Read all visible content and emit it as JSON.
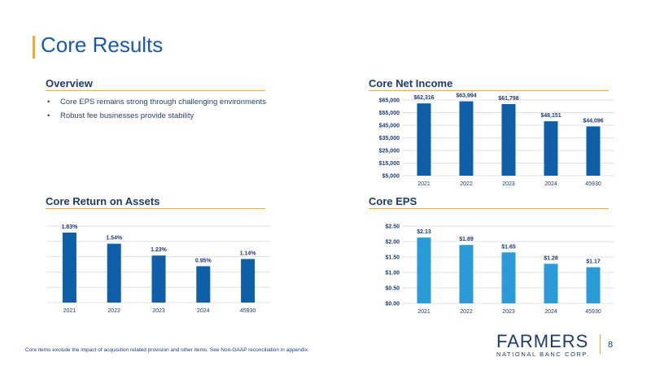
{
  "page": {
    "title": "Core Results",
    "footnote": "Core items exclude the impact of acquisition related provision and other items. See Non-GAAP reconciliation in appendix.",
    "page_number": "8"
  },
  "logo": {
    "main": "FARMERS",
    "sub": "NATIONAL BANC CORP."
  },
  "overview": {
    "heading": "Overview",
    "bullets": [
      "Core EPS remains strong through challenging environments",
      "Robust fee businesses provide stability"
    ]
  },
  "colors": {
    "accent": "#f0a830",
    "dark_blue": "#0e5ea8",
    "light_blue": "#2a9bd8",
    "title_blue": "#1b5aa6"
  },
  "chart_data": [
    {
      "type": "bar",
      "title": "Core Net Income",
      "categories": [
        "2021",
        "2022",
        "2023",
        "2024",
        "45930"
      ],
      "values": [
        62316,
        63994,
        61798,
        48151,
        44096
      ],
      "data_labels": [
        "$62,316",
        "$63,994",
        "$61,798",
        "$48,151",
        "$44,096"
      ],
      "ylim": [
        5000,
        65000
      ],
      "yticks": [
        5000,
        15000,
        25000,
        35000,
        45000,
        55000,
        65000
      ],
      "ytick_labels": [
        "$5,000",
        "$15,000",
        "$25,000",
        "$35,000",
        "$45,000",
        "$55,000",
        "$65,000"
      ],
      "grid": true,
      "color": "#0e5ea8"
    },
    {
      "type": "bar",
      "title": "Core Return on Assets",
      "categories": [
        "2021",
        "2022",
        "2023",
        "2024",
        "45930"
      ],
      "values": [
        1.83,
        1.54,
        1.23,
        0.95,
        1.14
      ],
      "data_labels": [
        "1.83%",
        "1.54%",
        "1.23%",
        "0.95%",
        "1.14%"
      ],
      "ylim": [
        0,
        2.0
      ],
      "yticks": [
        0,
        0.4,
        0.8,
        1.2,
        1.6,
        2.0
      ],
      "ytick_labels": [],
      "grid": true,
      "color": "#0e5ea8"
    },
    {
      "type": "bar",
      "title": "Core EPS",
      "categories": [
        "2021",
        "2022",
        "2023",
        "2024",
        "45930"
      ],
      "values": [
        2.13,
        1.89,
        1.65,
        1.28,
        1.17
      ],
      "data_labels": [
        "$2.13",
        "$1.89",
        "$1.65",
        "$1.28",
        "$1.17"
      ],
      "ylim": [
        0,
        2.5
      ],
      "yticks": [
        0,
        0.5,
        1.0,
        1.5,
        2.0,
        2.5
      ],
      "ytick_labels": [
        "$0.00",
        "$0.50",
        "$1.00",
        "$1.50",
        "$2.00",
        "$2.50"
      ],
      "grid": true,
      "color": "#2a9bd8"
    }
  ]
}
